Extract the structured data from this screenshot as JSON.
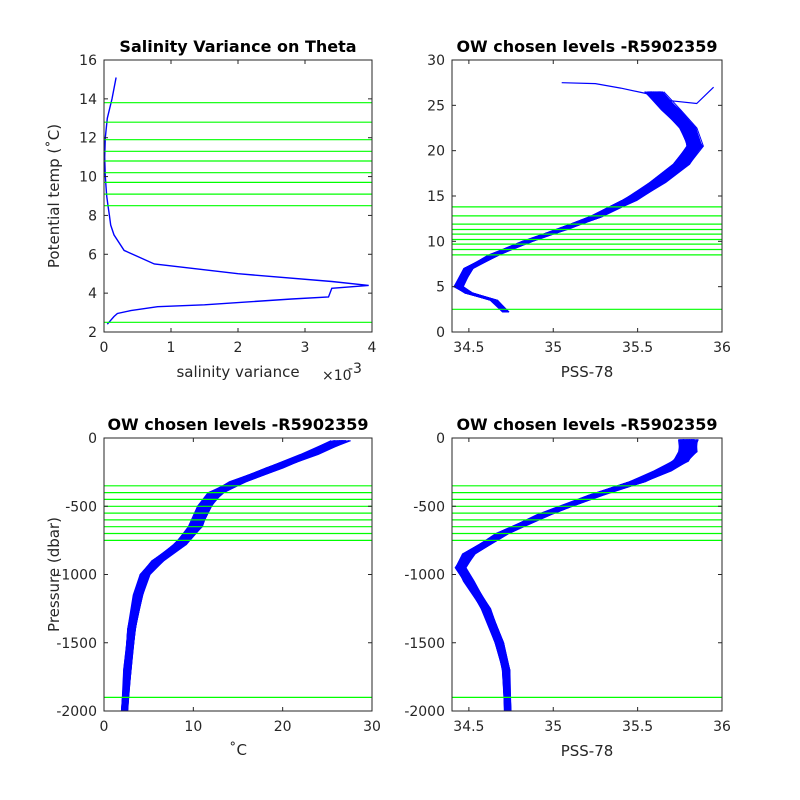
{
  "chart_data": [
    {
      "type": "line",
      "title": "Salinity Variance on Theta",
      "xlabel": "salinity variance",
      "ylabel": "Potential temp (˚C)",
      "x_exponent_label": "×10",
      "x_exponent_power": "-3",
      "xlim": [
        0,
        4
      ],
      "ylim": [
        2,
        16
      ],
      "xticks": [
        "0",
        "1",
        "2",
        "3",
        "4"
      ],
      "yticks": [
        "2",
        "4",
        "6",
        "8",
        "10",
        "12",
        "14",
        "16"
      ],
      "line_color": "#0000ff",
      "level_color": "#00ff00",
      "grid": false,
      "series": [
        {
          "x": [
            0.18,
            0.12,
            0.05,
            0.02,
            0.01,
            0.02,
            0.04,
            0.06,
            0.08,
            0.1,
            0.15,
            0.3,
            0.75,
            2.0,
            3.4,
            3.95,
            3.4,
            3.35,
            2.8,
            1.5,
            0.8,
            0.4,
            0.2,
            0.15,
            0.1,
            0.05
          ],
          "y": [
            15.1,
            14.0,
            13.0,
            12.0,
            11.0,
            10.0,
            9.0,
            8.5,
            8.0,
            7.5,
            7.0,
            6.2,
            5.5,
            5.0,
            4.6,
            4.4,
            4.25,
            3.8,
            3.7,
            3.4,
            3.3,
            3.1,
            2.95,
            2.8,
            2.6,
            2.4
          ]
        }
      ],
      "levels": [
        2.5,
        8.5,
        9.1,
        9.7,
        10.2,
        10.8,
        11.3,
        11.9,
        12.8,
        13.8
      ]
    },
    {
      "type": "line",
      "title": "OW chosen levels -R5902359",
      "xlabel": "PSS-78",
      "ylabel": "",
      "xlim": [
        34.4,
        36
      ],
      "ylim": [
        0,
        30
      ],
      "xticks": [
        "34.5",
        "35",
        "35.5",
        "36"
      ],
      "yticks": [
        "0",
        "5",
        "10",
        "15",
        "20",
        "25",
        "30"
      ],
      "line_color": "#0000ff",
      "level_color": "#00ff00",
      "grid": false,
      "profile_x": [
        34.72,
        34.65,
        34.5,
        34.44,
        34.5,
        34.65,
        34.85,
        35.05,
        35.25,
        35.45,
        35.62,
        35.76,
        35.84,
        35.8,
        35.7,
        35.6
      ],
      "profile_y": [
        2.2,
        3.5,
        4.3,
        5.0,
        7.0,
        8.5,
        10.0,
        11.3,
        12.7,
        14.5,
        16.5,
        18.5,
        20.5,
        22.5,
        24.5,
        26.5
      ],
      "surface_x": [
        35.05,
        35.25,
        35.4,
        35.55,
        35.7,
        35.85,
        35.95
      ],
      "surface_y": [
        27.5,
        27.4,
        26.9,
        26.3,
        25.5,
        25.2,
        27.0
      ],
      "profile_count": 140,
      "levels": [
        2.5,
        8.5,
        9.1,
        9.7,
        10.2,
        10.8,
        11.3,
        11.9,
        12.8,
        13.8
      ]
    },
    {
      "type": "line",
      "title": "OW chosen levels -R5902359",
      "xlabel": "˚C",
      "ylabel": "Pressure (dbar)",
      "xlim": [
        0,
        30
      ],
      "ylim": [
        -2000,
        0
      ],
      "xticks": [
        "0",
        "10",
        "20",
        "30"
      ],
      "yticks": [
        "-2000",
        "-1500",
        "-1000",
        "-500",
        "0"
      ],
      "line_color": "#0000ff",
      "level_color": "#00ff00",
      "grid": false,
      "profile_x": [
        2.3,
        2.6,
        3.1,
        3.8,
        4.6,
        6.0,
        8.5,
        10.2,
        11.2,
        12.5,
        15.0,
        19.0,
        23.0,
        26.5
      ],
      "profile_y": [
        -2000,
        -1700,
        -1400,
        -1150,
        -1000,
        -900,
        -780,
        -650,
        -500,
        -400,
        -320,
        -220,
        -120,
        -20
      ],
      "profile_count": 140,
      "levels": [
        -350,
        -400,
        -450,
        -500,
        -550,
        -600,
        -650,
        -700,
        -750,
        -1900
      ]
    },
    {
      "type": "line",
      "title": "OW chosen levels -R5902359",
      "xlabel": "PSS-78",
      "ylabel": "",
      "xlim": [
        34.4,
        36
      ],
      "ylim": [
        -2000,
        0
      ],
      "xticks": [
        "34.5",
        "35",
        "35.5",
        "36"
      ],
      "yticks": [
        "-2000",
        "-1500",
        "-1000",
        "-500",
        "0"
      ],
      "line_color": "#0000ff",
      "level_color": "#00ff00",
      "grid": false,
      "profile_x": [
        34.73,
        34.72,
        34.68,
        34.6,
        34.5,
        34.45,
        34.5,
        34.7,
        34.95,
        35.25,
        35.5,
        35.65,
        35.75,
        35.8,
        35.8
      ],
      "profile_y": [
        -2000,
        -1700,
        -1500,
        -1250,
        -1050,
        -950,
        -850,
        -700,
        -560,
        -420,
        -320,
        -240,
        -170,
        -100,
        -10
      ],
      "profile_count": 140,
      "levels": [
        -350,
        -400,
        -450,
        -500,
        -550,
        -600,
        -650,
        -700,
        -750,
        -1900
      ]
    }
  ]
}
